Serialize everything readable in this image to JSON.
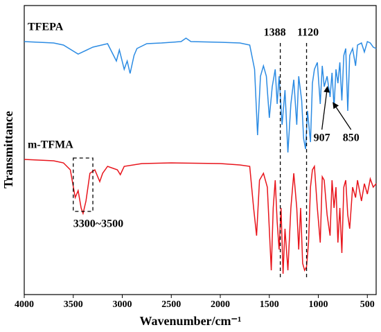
{
  "chart_data": {
    "type": "line",
    "xlabel": "Wavenumber/cm⁻¹",
    "ylabel": "Transmittance",
    "xlim": [
      4000,
      410
    ],
    "xticks": [
      4000,
      3500,
      3000,
      2500,
      2000,
      1500,
      1000,
      500
    ],
    "ylim": [
      0,
      417
    ],
    "annotations": [
      {
        "text": "1388",
        "x": 1388
      },
      {
        "text": "1120",
        "x": 1120
      },
      {
        "text": "907",
        "x": 907
      },
      {
        "text": "850",
        "x": 850
      },
      {
        "text": "3300~3500",
        "x": [
          3500,
          3300
        ]
      }
    ],
    "series": [
      {
        "name": "TFEPA",
        "color": "#2b8be3",
        "x": [
          4000,
          3700,
          3600,
          3450,
          3300,
          3150,
          3060,
          3030,
          2980,
          2950,
          2920,
          2880,
          2850,
          2750,
          2600,
          2400,
          2350,
          2300,
          2000,
          1800,
          1700,
          1650,
          1620,
          1590,
          1560,
          1530,
          1500,
          1470,
          1440,
          1420,
          1400,
          1370,
          1340,
          1310,
          1280,
          1250,
          1220,
          1200,
          1170,
          1150,
          1130,
          1110,
          1080,
          1060,
          1040,
          1010,
          980,
          960,
          940,
          910,
          880,
          860,
          840,
          820,
          800,
          780,
          760,
          740,
          720,
          700,
          680,
          650,
          620,
          600,
          560,
          530,
          500,
          470,
          440,
          410
        ],
        "values": [
          365,
          363,
          360,
          347,
          357,
          362,
          337,
          353,
          325,
          337,
          319,
          345,
          355,
          362,
          363,
          365,
          370,
          365,
          364,
          363,
          360,
          325,
          230,
          315,
          330,
          315,
          255,
          300,
          325,
          275,
          315,
          245,
          295,
          205,
          275,
          310,
          245,
          315,
          280,
          225,
          210,
          265,
          220,
          305,
          325,
          335,
          275,
          330,
          300,
          315,
          285,
          320,
          270,
          325,
          305,
          335,
          280,
          345,
          355,
          265,
          345,
          355,
          330,
          360,
          363,
          350,
          365,
          363,
          357,
          355
        ]
      },
      {
        "name": "m-TFMA",
        "color": "#e8141b",
        "x": [
          4000,
          3700,
          3600,
          3530,
          3480,
          3450,
          3420,
          3400,
          3370,
          3330,
          3280,
          3230,
          3200,
          3150,
          3050,
          3020,
          2980,
          2800,
          2500,
          2000,
          1800,
          1700,
          1660,
          1630,
          1600,
          1560,
          1520,
          1480,
          1460,
          1440,
          1420,
          1400,
          1380,
          1360,
          1340,
          1310,
          1280,
          1250,
          1220,
          1200,
          1180,
          1160,
          1140,
          1120,
          1100,
          1080,
          1060,
          1040,
          1010,
          980,
          960,
          940,
          910,
          880,
          860,
          840,
          820,
          800,
          780,
          760,
          740,
          720,
          700,
          680,
          650,
          620,
          600,
          560,
          530,
          500,
          470,
          440,
          410
        ],
        "values": [
          195,
          193,
          190,
          180,
          140,
          150,
          125,
          117,
          135,
          175,
          180,
          163,
          175,
          185,
          180,
          173,
          185,
          189,
          190,
          189,
          187,
          185,
          125,
          85,
          165,
          175,
          155,
          35,
          125,
          165,
          105,
          65,
          125,
          30,
          95,
          35,
          125,
          175,
          125,
          65,
          125,
          45,
          35,
          40,
          75,
          155,
          180,
          185,
          125,
          75,
          170,
          165,
          115,
          85,
          165,
          125,
          155,
          75,
          125,
          60,
          155,
          165,
          115,
          95,
          155,
          140,
          165,
          135,
          160,
          145,
          167,
          155,
          160
        ]
      }
    ]
  }
}
